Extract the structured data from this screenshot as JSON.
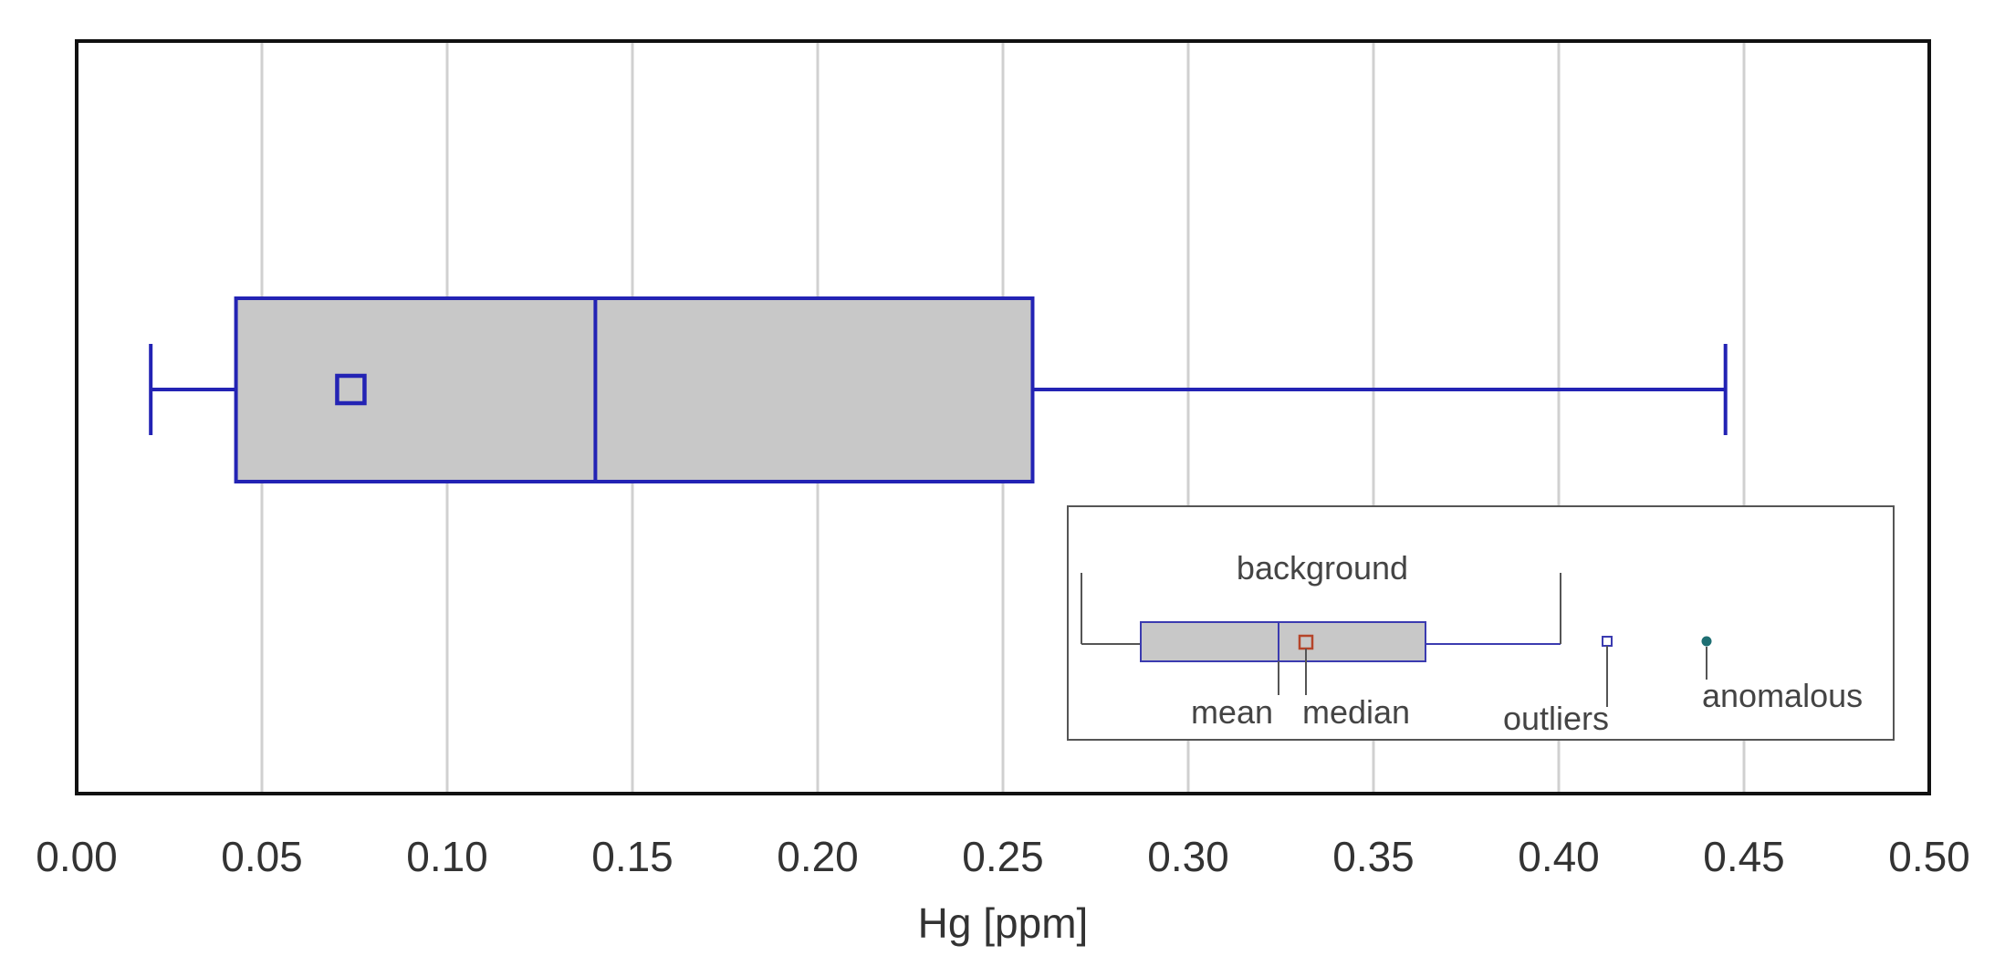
{
  "chart_data": {
    "type": "box",
    "orientation": "horizontal",
    "xlabel": "Hg [ppm]",
    "xlim": [
      0.0,
      0.5
    ],
    "x_ticks": [
      "0.00",
      "0.05",
      "0.10",
      "0.15",
      "0.20",
      "0.25",
      "0.30",
      "0.35",
      "0.40",
      "0.45",
      "0.50"
    ],
    "x_tick_values": [
      0.0,
      0.05,
      0.1,
      0.15,
      0.2,
      0.25,
      0.3,
      0.35,
      0.4,
      0.45,
      0.5
    ],
    "grid": "vertical",
    "box": {
      "whisker_low": 0.02,
      "q1": 0.043,
      "median": 0.14,
      "mean": 0.074,
      "q3": 0.258,
      "whisker_high": 0.445
    },
    "legend": {
      "position": "bottom-right",
      "title": "background",
      "labels": {
        "mean": "mean",
        "median": "median",
        "outliers": "outliers",
        "anomalous": "anomalous"
      }
    },
    "colors": {
      "box_stroke": "#2323b4",
      "box_fill": "#c8c8c8",
      "grid": "#d0d0d0",
      "frame": "#111111",
      "legend_median_marker": "#b5452a",
      "legend_anomalous_marker": "#1e6f73"
    }
  }
}
